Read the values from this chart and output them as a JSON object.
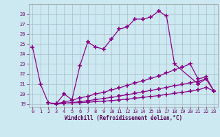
{
  "xlabel": "Windchill (Refroidissement éolien,°C)",
  "background_color": "#cce8f0",
  "line_color": "#880088",
  "grid_color": "#aabbcc",
  "xlim": [
    -0.5,
    23.5
  ],
  "ylim": [
    18.7,
    29.0
  ],
  "xticks": [
    0,
    1,
    2,
    3,
    4,
    5,
    6,
    7,
    8,
    9,
    10,
    11,
    12,
    13,
    14,
    15,
    16,
    17,
    18,
    19,
    20,
    21,
    22,
    23
  ],
  "yticks": [
    19,
    20,
    21,
    22,
    23,
    24,
    25,
    26,
    27,
    28
  ],
  "line0_x": [
    0,
    1,
    2,
    3,
    4,
    5,
    6,
    7,
    8,
    9,
    10,
    11,
    12,
    13,
    14,
    15,
    16,
    17,
    18,
    21,
    22
  ],
  "line0_y": [
    24.7,
    21.0,
    19.1,
    19.0,
    20.0,
    19.4,
    22.8,
    25.2,
    24.7,
    24.5,
    25.5,
    26.5,
    26.7,
    27.5,
    27.5,
    27.7,
    28.3,
    27.8,
    23.0,
    21.0,
    21.5
  ],
  "line1_x": [
    2,
    3,
    4,
    5,
    6,
    7,
    8,
    9,
    10,
    11,
    12,
    13,
    14,
    15,
    16,
    17,
    18,
    19,
    20,
    21,
    22,
    23
  ],
  "line1_y": [
    19.1,
    19.0,
    19.2,
    19.35,
    19.6,
    19.75,
    20.0,
    20.15,
    20.4,
    20.6,
    20.85,
    21.1,
    21.3,
    21.55,
    21.8,
    22.1,
    22.4,
    22.7,
    23.0,
    21.5,
    21.7,
    20.3
  ],
  "line2_x": [
    2,
    3,
    4,
    5,
    6,
    7,
    8,
    9,
    10,
    11,
    12,
    13,
    14,
    15,
    16,
    17,
    18,
    19,
    20,
    21,
    22,
    23
  ],
  "line2_y": [
    19.1,
    19.0,
    19.07,
    19.13,
    19.22,
    19.32,
    19.43,
    19.54,
    19.65,
    19.78,
    19.92,
    20.05,
    20.2,
    20.35,
    20.5,
    20.65,
    20.82,
    20.95,
    21.12,
    21.25,
    21.5,
    20.3
  ],
  "line3_x": [
    2,
    3,
    4,
    5,
    6,
    7,
    8,
    9,
    10,
    11,
    12,
    13,
    14,
    15,
    16,
    17,
    18,
    19,
    20,
    21,
    22,
    23
  ],
  "line3_y": [
    19.1,
    19.05,
    19.08,
    19.1,
    19.13,
    19.17,
    19.22,
    19.27,
    19.33,
    19.4,
    19.48,
    19.56,
    19.65,
    19.74,
    19.83,
    19.94,
    20.05,
    20.16,
    20.27,
    20.4,
    20.65,
    20.3
  ]
}
